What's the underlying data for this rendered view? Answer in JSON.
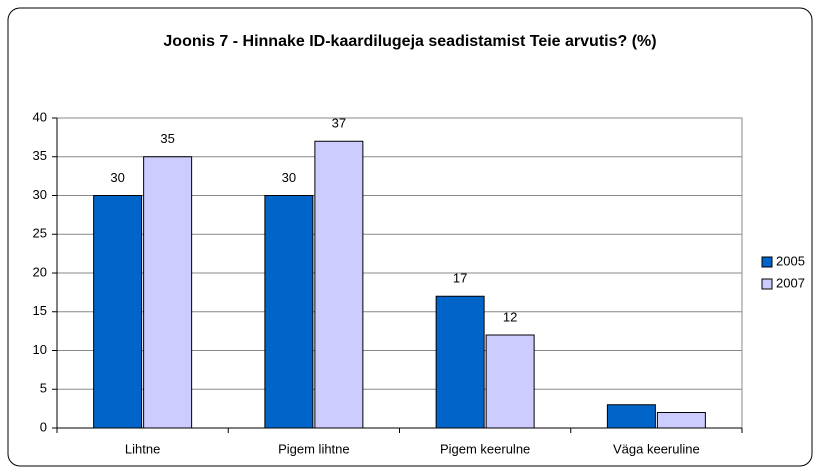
{
  "chart_data": {
    "type": "bar",
    "title": "Joonis 7 - Hinnake ID-kaardilugeja seadistamist Teie arvutis? (%)",
    "categories": [
      "Lihtne",
      "Pigem lihtne",
      "Pigem keerulne",
      "Väga keeruline"
    ],
    "series": [
      {
        "name": "2005",
        "color": "#0064c8",
        "values": [
          30,
          30,
          17,
          3
        ],
        "value_labels": [
          "30",
          "30",
          "17",
          null
        ]
      },
      {
        "name": "2007",
        "color": "#ccccff",
        "values": [
          35,
          37,
          12,
          2
        ],
        "value_labels": [
          "35",
          "37",
          "12",
          null
        ]
      }
    ],
    "ylim": [
      0,
      40
    ],
    "yticks": [
      0,
      5,
      10,
      15,
      20,
      25,
      30,
      35,
      40
    ],
    "grid": true,
    "legend": "right"
  }
}
